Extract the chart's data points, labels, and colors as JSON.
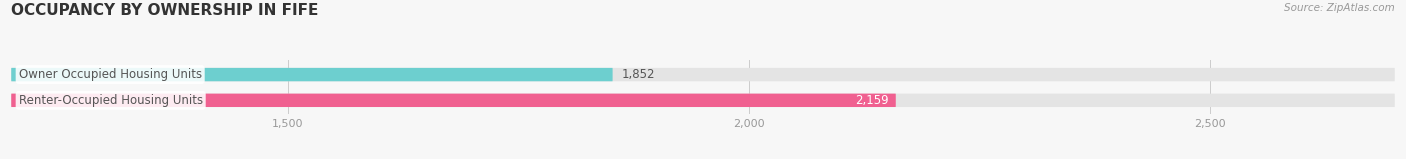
{
  "title": "OCCUPANCY BY OWNERSHIP IN FIFE",
  "source_text": "Source: ZipAtlas.com",
  "bars": [
    {
      "label": "Owner Occupied Housing Units",
      "value": 1852,
      "color": "#6dcfcf",
      "text_color": "#555555",
      "value_color": "#555555",
      "value_inside": false
    },
    {
      "label": "Renter-Occupied Housing Units",
      "value": 2159,
      "color": "#f06090",
      "text_color": "#555555",
      "value_color": "#ffffff",
      "value_inside": true
    }
  ],
  "xlim": [
    1200,
    2700
  ],
  "xticks": [
    1500,
    2000,
    2500
  ],
  "xtick_labels": [
    "1,500",
    "2,000",
    "2,500"
  ],
  "bar_height": 0.52,
  "background_color": "#f7f7f7",
  "bar_background_color": "#e4e4e4",
  "title_fontsize": 11,
  "label_fontsize": 8.5,
  "value_fontsize": 8.5,
  "source_fontsize": 7.5
}
